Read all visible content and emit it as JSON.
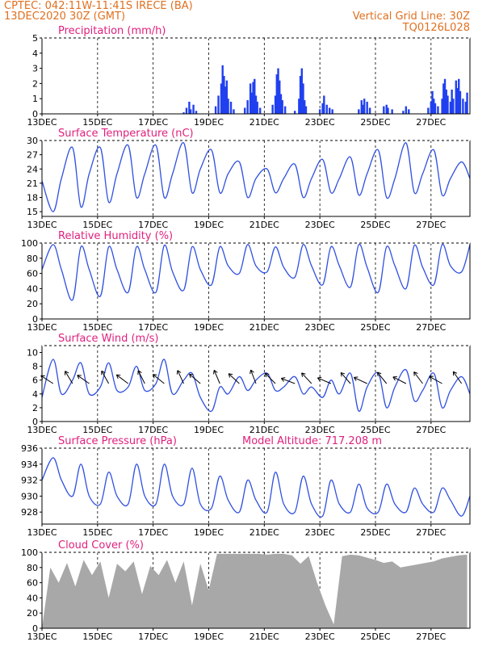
{
  "header": {
    "title_left_1": "CPTEC:   042:11W-11:41S   IRECE (BA)",
    "title_left_2": "13DEC2020 30Z (GMT)",
    "title_right_1": "Vertical Grid Line: 30Z",
    "title_right_2": "TQ0126L028"
  },
  "colors": {
    "line": "#3050e0",
    "bar": "#2040f0",
    "cloud": "#a8a8a8",
    "title": "#e0207e",
    "header": "#e07020"
  },
  "x_axis": {
    "range_days": [
      0,
      15.4
    ],
    "ticks": [
      {
        "day": 0,
        "label": "13DEC"
      },
      {
        "day": 2,
        "label": "15DEC"
      },
      {
        "day": 4,
        "label": "17DEC"
      },
      {
        "day": 6,
        "label": "19DEC"
      },
      {
        "day": 8,
        "label": "21DEC"
      },
      {
        "day": 10,
        "label": "23DEC"
      },
      {
        "day": 12,
        "label": "25DEC"
      },
      {
        "day": 14,
        "label": "27DEC"
      }
    ]
  },
  "chart_data": [
    {
      "type": "bar",
      "title": "Precipitation (mm/h)",
      "ylim": [
        0,
        5
      ],
      "yticks": [
        0,
        1,
        2,
        3,
        4,
        5
      ],
      "bars": [
        [
          5.1,
          0.1
        ],
        [
          5.2,
          0.4
        ],
        [
          5.3,
          0.8
        ],
        [
          5.35,
          0.3
        ],
        [
          5.45,
          0.6
        ],
        [
          5.55,
          0.2
        ],
        [
          6.25,
          0.5
        ],
        [
          6.35,
          1.2
        ],
        [
          6.45,
          2.0
        ],
        [
          6.5,
          3.2
        ],
        [
          6.55,
          2.5
        ],
        [
          6.6,
          1.8
        ],
        [
          6.65,
          2.2
        ],
        [
          6.7,
          1.0
        ],
        [
          6.8,
          0.8
        ],
        [
          6.9,
          0.3
        ],
        [
          7.3,
          0.4
        ],
        [
          7.4,
          0.9
        ],
        [
          7.5,
          2.0
        ],
        [
          7.55,
          1.4
        ],
        [
          7.6,
          2.1
        ],
        [
          7.65,
          2.3
        ],
        [
          7.7,
          1.2
        ],
        [
          7.75,
          0.8
        ],
        [
          7.85,
          0.4
        ],
        [
          8.3,
          0.6
        ],
        [
          8.4,
          1.2
        ],
        [
          8.45,
          2.6
        ],
        [
          8.5,
          3.0
        ],
        [
          8.55,
          2.2
        ],
        [
          8.6,
          1.3
        ],
        [
          8.65,
          0.9
        ],
        [
          8.75,
          0.5
        ],
        [
          9.1,
          0.2
        ],
        [
          9.25,
          1.0
        ],
        [
          9.3,
          2.5
        ],
        [
          9.35,
          3.0
        ],
        [
          9.4,
          2.0
        ],
        [
          9.45,
          0.9
        ],
        [
          9.5,
          0.5
        ],
        [
          10.0,
          0.3
        ],
        [
          10.1,
          0.7
        ],
        [
          10.15,
          1.2
        ],
        [
          10.25,
          0.6
        ],
        [
          10.35,
          0.4
        ],
        [
          10.45,
          0.3
        ],
        [
          11.4,
          0.3
        ],
        [
          11.5,
          0.9
        ],
        [
          11.55,
          0.6
        ],
        [
          11.6,
          1.0
        ],
        [
          11.7,
          0.8
        ],
        [
          11.8,
          0.4
        ],
        [
          12.3,
          0.5
        ],
        [
          12.4,
          0.6
        ],
        [
          12.45,
          0.4
        ],
        [
          12.6,
          0.3
        ],
        [
          13.0,
          0.2
        ],
        [
          13.1,
          0.5
        ],
        [
          13.2,
          0.3
        ],
        [
          13.9,
          0.4
        ],
        [
          14.0,
          0.8
        ],
        [
          14.05,
          1.5
        ],
        [
          14.1,
          1.0
        ],
        [
          14.15,
          0.7
        ],
        [
          14.25,
          0.5
        ],
        [
          14.4,
          1.0
        ],
        [
          14.45,
          2.0
        ],
        [
          14.5,
          2.3
        ],
        [
          14.55,
          1.6
        ],
        [
          14.6,
          1.2
        ],
        [
          14.7,
          0.8
        ],
        [
          14.75,
          1.6
        ],
        [
          14.8,
          1.0
        ],
        [
          14.9,
          2.2
        ],
        [
          14.95,
          1.7
        ],
        [
          15.0,
          2.3
        ],
        [
          15.05,
          1.5
        ],
        [
          15.15,
          1.0
        ],
        [
          15.25,
          0.8
        ],
        [
          15.3,
          1.4
        ]
      ]
    },
    {
      "type": "line",
      "title": "Surface Temperature (nC)",
      "ylim": [
        14,
        30
      ],
      "yticks": [
        15,
        18,
        21,
        24,
        27,
        30
      ],
      "x": [
        0.0,
        0.4,
        0.7,
        1.1,
        1.4,
        1.7,
        2.1,
        2.4,
        2.7,
        3.1,
        3.4,
        3.7,
        4.1,
        4.4,
        4.7,
        5.1,
        5.4,
        5.7,
        6.1,
        6.4,
        6.7,
        7.1,
        7.4,
        7.7,
        8.1,
        8.4,
        8.7,
        9.1,
        9.4,
        9.7,
        10.1,
        10.4,
        10.7,
        11.1,
        11.4,
        11.7,
        12.1,
        12.4,
        12.7,
        13.1,
        13.4,
        13.7,
        14.1,
        14.4,
        14.7,
        15.1,
        15.4
      ],
      "y": [
        21.5,
        15,
        22,
        28.5,
        16,
        23,
        28.5,
        17,
        23,
        29,
        18,
        23,
        29,
        18,
        23,
        29.5,
        19,
        24,
        28,
        19,
        23,
        25.5,
        18,
        22,
        24,
        19,
        22,
        25,
        18,
        22,
        26,
        19,
        22,
        26.5,
        18.5,
        23,
        28,
        18,
        22,
        29.5,
        19,
        23,
        28,
        18.5,
        22,
        25.5,
        22
      ]
    },
    {
      "type": "line",
      "title": "Relative Humidity (%)",
      "ylim": [
        0,
        100
      ],
      "yticks": [
        0,
        20,
        40,
        60,
        80,
        100
      ],
      "x": [
        0.0,
        0.4,
        0.7,
        1.1,
        1.4,
        1.7,
        2.1,
        2.4,
        2.7,
        3.1,
        3.4,
        3.7,
        4.1,
        4.4,
        4.7,
        5.1,
        5.4,
        5.7,
        6.1,
        6.4,
        6.7,
        7.1,
        7.4,
        7.7,
        8.1,
        8.4,
        8.7,
        9.1,
        9.4,
        9.7,
        10.1,
        10.4,
        10.7,
        11.1,
        11.4,
        11.7,
        12.1,
        12.4,
        12.7,
        13.1,
        13.4,
        13.7,
        14.1,
        14.4,
        14.7,
        15.1,
        15.4
      ],
      "y": [
        65,
        98,
        65,
        25,
        95,
        65,
        30,
        95,
        65,
        35,
        95,
        65,
        35,
        97,
        62,
        38,
        95,
        65,
        45,
        95,
        70,
        60,
        98,
        70,
        62,
        95,
        68,
        55,
        98,
        70,
        45,
        95,
        70,
        42,
        98,
        68,
        35,
        95,
        70,
        40,
        97,
        68,
        45,
        98,
        70,
        62,
        98
      ]
    },
    {
      "type": "line",
      "title": "Surface Wind (m/s)",
      "ylim": [
        0,
        11
      ],
      "yticks": [
        0,
        2,
        4,
        6,
        8,
        10
      ],
      "x": [
        0.0,
        0.4,
        0.7,
        1.1,
        1.4,
        1.7,
        2.1,
        2.4,
        2.7,
        3.1,
        3.4,
        3.7,
        4.1,
        4.4,
        4.7,
        5.1,
        5.4,
        5.7,
        6.1,
        6.4,
        6.7,
        7.1,
        7.4,
        7.7,
        8.1,
        8.4,
        8.7,
        9.1,
        9.4,
        9.7,
        10.1,
        10.4,
        10.7,
        11.1,
        11.4,
        11.7,
        12.1,
        12.4,
        12.7,
        13.1,
        13.4,
        13.7,
        14.1,
        14.4,
        14.7,
        15.1,
        15.4
      ],
      "y": [
        3.5,
        9,
        4,
        6,
        8.5,
        4,
        5,
        8.5,
        4.5,
        5,
        8,
        4.5,
        5.5,
        9,
        4,
        6,
        7,
        3.5,
        1.5,
        5,
        4,
        6.5,
        4.5,
        6,
        7,
        4.5,
        5,
        6.5,
        4,
        5,
        3.5,
        6,
        4,
        7,
        1.5,
        5,
        7,
        2,
        5,
        7.5,
        3,
        4.5,
        7,
        2,
        4.5,
        6.5,
        4
      ]
    },
    {
      "type": "line",
      "title": "Surface Pressure (hPa)",
      "annotation": "Model Altitude: 717.208  m",
      "ylim": [
        926.5,
        936
      ],
      "yticks": [
        928,
        930,
        932,
        934,
        936
      ],
      "x": [
        0.0,
        0.4,
        0.7,
        1.1,
        1.4,
        1.7,
        2.1,
        2.4,
        2.7,
        3.1,
        3.4,
        3.7,
        4.1,
        4.4,
        4.7,
        5.1,
        5.4,
        5.7,
        6.1,
        6.4,
        6.7,
        7.1,
        7.4,
        7.7,
        8.1,
        8.4,
        8.7,
        9.1,
        9.4,
        9.7,
        10.1,
        10.4,
        10.7,
        11.1,
        11.4,
        11.7,
        12.1,
        12.4,
        12.7,
        13.1,
        13.4,
        13.7,
        14.1,
        14.4,
        14.7,
        15.1,
        15.4
      ],
      "y": [
        932,
        934.8,
        932,
        930,
        934,
        930,
        929,
        933,
        930,
        929,
        934,
        930,
        929,
        934,
        930,
        929,
        933.5,
        929,
        928.5,
        932.5,
        929.5,
        928,
        932,
        929.5,
        928,
        933,
        929,
        928,
        932.5,
        929,
        927.5,
        932,
        929,
        928,
        931.5,
        928.5,
        928,
        931.5,
        929,
        928,
        931,
        929,
        928,
        931,
        929.5,
        927.5,
        930
      ]
    },
    {
      "type": "area",
      "title": "Cloud Cover (%)",
      "ylim": [
        0,
        100
      ],
      "yticks": [
        0,
        20,
        40,
        60,
        80,
        100
      ],
      "x": [
        0.0,
        0.3,
        0.6,
        0.9,
        1.2,
        1.5,
        1.8,
        2.1,
        2.4,
        2.7,
        3.0,
        3.3,
        3.6,
        3.9,
        4.2,
        4.5,
        4.8,
        5.1,
        5.4,
        5.7,
        6.0,
        6.3,
        6.6,
        6.9,
        7.2,
        7.5,
        7.8,
        8.1,
        8.4,
        8.7,
        9.0,
        9.3,
        9.6,
        9.9,
        10.2,
        10.5,
        10.8,
        11.1,
        11.4,
        11.7,
        12.0,
        12.3,
        12.6,
        12.9,
        13.2,
        13.5,
        13.8,
        14.1,
        14.4,
        14.7,
        15.0,
        15.3
      ],
      "y": [
        0,
        80,
        60,
        86,
        55,
        90,
        70,
        88,
        40,
        85,
        75,
        88,
        45,
        82,
        70,
        90,
        60,
        88,
        30,
        85,
        50,
        98,
        98,
        98,
        98,
        98,
        98,
        97,
        98,
        98,
        96,
        85,
        95,
        60,
        30,
        5,
        95,
        97,
        96,
        93,
        90,
        86,
        88,
        80,
        82,
        84,
        86,
        88,
        92,
        94,
        96,
        97
      ]
    }
  ]
}
